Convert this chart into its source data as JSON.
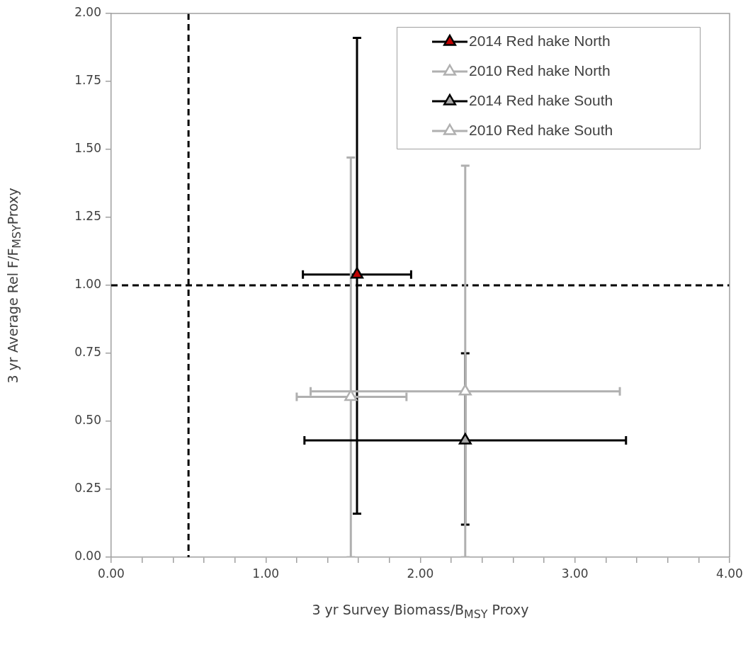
{
  "chart_data": {
    "type": "scatter",
    "xlabel": "3 yr Survey Biomass/B$_{MSY}$ Proxy",
    "ylabel": "3 yr Average Rel F/F$_{MSY}$Proxy",
    "xlim": [
      0,
      4
    ],
    "xticks": [
      {
        "value": 0,
        "label": "0.00"
      },
      {
        "value": 0.2,
        "label": null
      },
      {
        "value": 0.4,
        "label": null
      },
      {
        "value": 0.6,
        "label": null
      },
      {
        "value": 0.8,
        "label": null
      },
      {
        "value": 1,
        "label": "1.00"
      },
      {
        "value": 1.2,
        "label": null
      },
      {
        "value": 1.4,
        "label": null
      },
      {
        "value": 1.6,
        "label": null
      },
      {
        "value": 1.8,
        "label": null
      },
      {
        "value": 2,
        "label": "2.00"
      },
      {
        "value": 2.2,
        "label": null
      },
      {
        "value": 2.4,
        "label": null
      },
      {
        "value": 2.6,
        "label": null
      },
      {
        "value": 2.8,
        "label": null
      },
      {
        "value": 3,
        "label": "3.00"
      },
      {
        "value": 3.2,
        "label": null
      },
      {
        "value": 3.4,
        "label": null
      },
      {
        "value": 3.6,
        "label": null
      },
      {
        "value": 3.8,
        "label": null
      },
      {
        "value": 4,
        "label": "4.00"
      }
    ],
    "ylim": [
      0,
      2
    ],
    "yticks": [
      {
        "value": 0,
        "label": "0.00"
      },
      {
        "value": 0.25,
        "label": "0.25"
      },
      {
        "value": 0.5,
        "label": "0.50"
      },
      {
        "value": 0.75,
        "label": "0.75"
      },
      {
        "value": 1,
        "label": "1.00"
      },
      {
        "value": 1.25,
        "label": "1.25"
      },
      {
        "value": 1.5,
        "label": "1.50"
      },
      {
        "value": 1.75,
        "label": "1.75"
      },
      {
        "value": 2,
        "label": "2.00"
      }
    ],
    "marker": "triangle",
    "legend": "top right",
    "series": [
      {
        "name": "2014 Red hake North",
        "color": "#000000",
        "colors": [
          "#c00000"
        ],
        "x": [
          1.59
        ],
        "values": [
          1.04
        ],
        "errors": [
          [
            0.16,
            1.91
          ]
        ],
        "xerrors": [
          [
            1.24,
            1.94
          ]
        ]
      },
      {
        "name": "2010 Red hake North",
        "color": "#b0b0b0",
        "colors": [
          "#ffffff"
        ],
        "x": [
          1.55
        ],
        "values": [
          0.59
        ],
        "errors": [
          [
            0,
            1.47
          ]
        ],
        "xerrors": [
          [
            1.2,
            1.91
          ]
        ]
      },
      {
        "name": "2014 Red hake South",
        "color": "#000000",
        "colors": [
          "#a6a6a6"
        ],
        "x": [
          2.29
        ],
        "values": [
          0.43
        ],
        "errors": [
          [
            0.12,
            0.75
          ]
        ],
        "xerrors": [
          [
            1.25,
            3.33
          ]
        ]
      },
      {
        "name": "2010 Red hake South",
        "color": "#b0b0b0",
        "colors": [
          "#ffffff"
        ],
        "x": [
          2.29
        ],
        "values": [
          0.61
        ],
        "errors": [
          [
            0,
            1.44
          ]
        ],
        "xerrors": [
          [
            1.29,
            3.29
          ]
        ]
      }
    ],
    "ref_lines": [
      {
        "axis": "x",
        "value": 0.5,
        "color": "#000000",
        "line_style": "dashed"
      },
      {
        "axis": "y",
        "value": 1,
        "color": "#000000",
        "line_style": "dashed"
      }
    ]
  }
}
